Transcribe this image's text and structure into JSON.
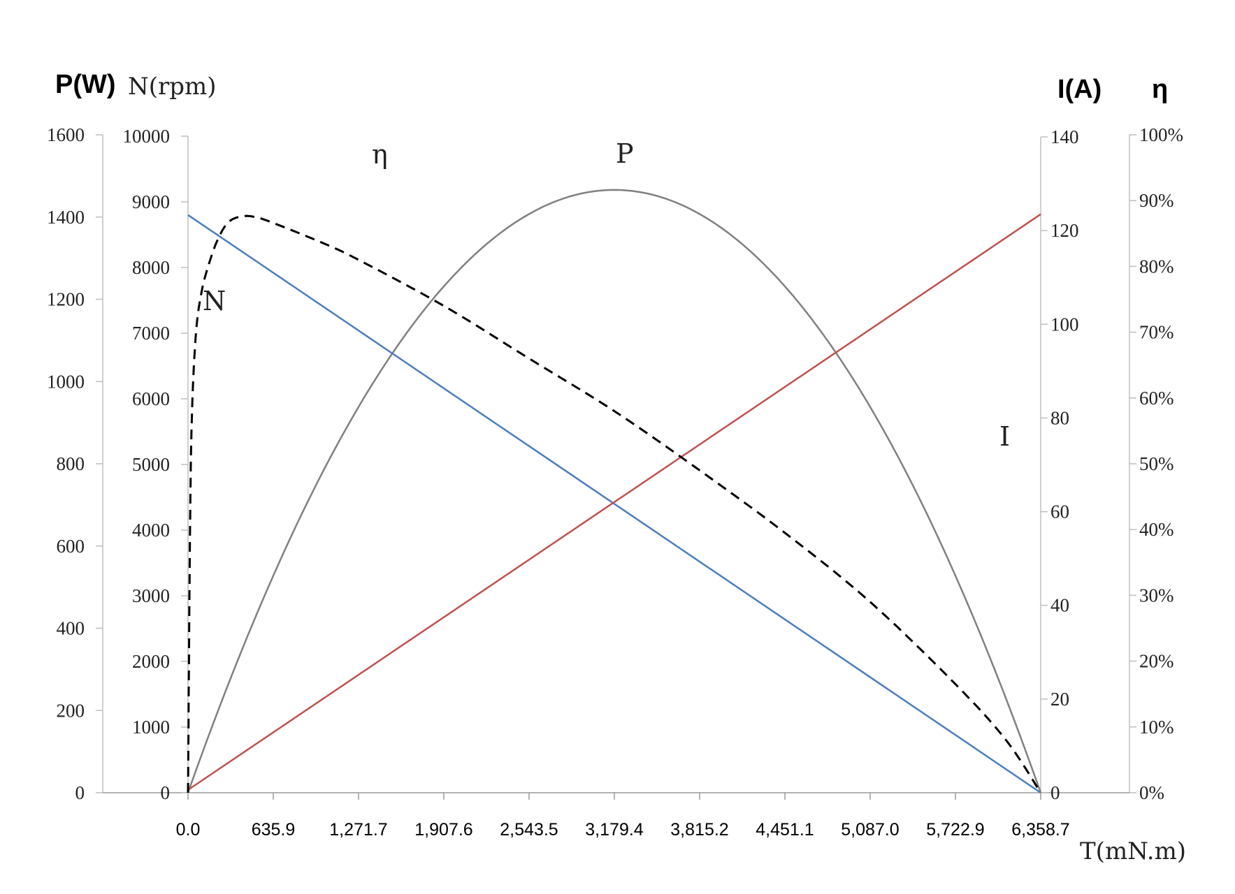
{
  "chart_data": {
    "type": "line",
    "x": {
      "label": "T(mN.m)",
      "ticks": [
        "0.0",
        "635.9",
        "1,271.7",
        "1,907.6",
        "2,543.5",
        "3,179.4",
        "3,815.2",
        "4,451.1",
        "5,087.0",
        "5,722.9",
        "6,358.7"
      ],
      "range": [
        0,
        6358.7
      ]
    },
    "axes": {
      "P": {
        "title": "P(W)",
        "range": [
          0,
          1600
        ],
        "ticks": [
          "0",
          "200",
          "400",
          "600",
          "800",
          "1000",
          "1200",
          "1400",
          "1600"
        ],
        "side": "left-outer"
      },
      "N": {
        "title": "N(rpm)",
        "range": [
          0,
          10000
        ],
        "ticks": [
          "0",
          "1000",
          "2000",
          "3000",
          "4000",
          "5000",
          "6000",
          "7000",
          "8000",
          "9000",
          "10000"
        ],
        "side": "left-inner"
      },
      "I": {
        "title": "I(A)",
        "range": [
          0,
          140
        ],
        "ticks": [
          "0",
          "20",
          "40",
          "60",
          "80",
          "100",
          "120",
          "140"
        ],
        "side": "right-inner"
      },
      "eta": {
        "title": "η",
        "range": [
          0,
          1
        ],
        "ticks": [
          "0%",
          "10%",
          "20%",
          "30%",
          "40%",
          "50%",
          "60%",
          "70%",
          "80%",
          "90%",
          "100%"
        ],
        "side": "right-outer"
      }
    },
    "series": [
      {
        "name": "N",
        "axis": "N",
        "color": "#4a7ebf",
        "style": "solid",
        "points": [
          [
            0,
            8800
          ],
          [
            6358.7,
            0
          ]
        ]
      },
      {
        "name": "I",
        "axis": "I",
        "color": "#c0504d",
        "style": "solid",
        "points": [
          [
            0,
            0.6
          ],
          [
            6358.7,
            123.5
          ]
        ]
      },
      {
        "name": "P",
        "axis": "P",
        "color": "#808080",
        "style": "solid",
        "points": [
          [
            0,
            0
          ],
          [
            635.9,
            528
          ],
          [
            1271.7,
            940
          ],
          [
            1907.6,
            1232
          ],
          [
            2543.5,
            1408
          ],
          [
            3179.4,
            1466
          ],
          [
            3815.2,
            1408
          ],
          [
            4451.1,
            1232
          ],
          [
            5087.0,
            940
          ],
          [
            5722.9,
            528
          ],
          [
            6358.7,
            0
          ]
        ]
      },
      {
        "name": "η",
        "axis": "eta",
        "color": "#000000",
        "style": "dashed",
        "points": [
          [
            0,
            0
          ],
          [
            15,
            0.4
          ],
          [
            30,
            0.58
          ],
          [
            60,
            0.7
          ],
          [
            100,
            0.76
          ],
          [
            150,
            0.8
          ],
          [
            220,
            0.84
          ],
          [
            300,
            0.867
          ],
          [
            400,
            0.876
          ],
          [
            500,
            0.875
          ],
          [
            635.9,
            0.866
          ],
          [
            1000,
            0.836
          ],
          [
            1271.7,
            0.81
          ],
          [
            1907.6,
            0.74
          ],
          [
            2543.5,
            0.66
          ],
          [
            3179.4,
            0.58
          ],
          [
            3815.2,
            0.49
          ],
          [
            4451.1,
            0.395
          ],
          [
            5087.0,
            0.29
          ],
          [
            5722.9,
            0.165
          ],
          [
            6100,
            0.08
          ],
          [
            6358.7,
            0
          ]
        ]
      }
    ],
    "labels": {
      "N": "N",
      "I": "I",
      "P": "P",
      "eta": "η"
    },
    "grid": false,
    "legend": "none"
  }
}
